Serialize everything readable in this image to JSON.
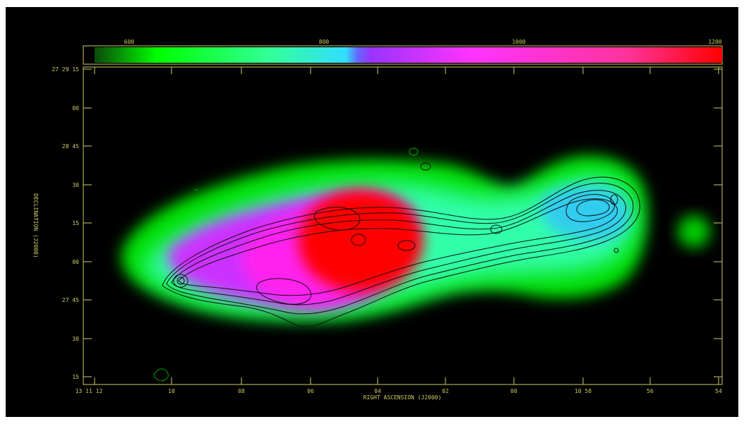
{
  "colorbar": {
    "ticks": [
      "600",
      "800",
      "1000",
      "1200"
    ],
    "stops": [
      {
        "offset": "0%",
        "color": "#0a4a0a"
      },
      {
        "offset": "10%",
        "color": "#00ff00"
      },
      {
        "offset": "28%",
        "color": "#33ff99"
      },
      {
        "offset": "40%",
        "color": "#33ddff"
      },
      {
        "offset": "42%",
        "color": "#6666ff"
      },
      {
        "offset": "44%",
        "color": "#9933ff"
      },
      {
        "offset": "60%",
        "color": "#ff33ff"
      },
      {
        "offset": "85%",
        "color": "#ff3399"
      },
      {
        "offset": "100%",
        "color": "#ff0000"
      }
    ]
  },
  "axes": {
    "xlabel": "RIGHT ASCENSION (J2000)",
    "ylabel": "DECLINATION (J2000)",
    "xticks": [
      "13 11 12",
      "10",
      "08",
      "06",
      "04",
      "02",
      "00",
      "10 58",
      "56",
      "54"
    ],
    "yticks": [
      "27 29 15",
      "00",
      "28 45",
      "30",
      "15",
      "00",
      "27 45",
      "30",
      "15"
    ]
  },
  "colors": {
    "background": "#000000",
    "axis": "#cccc66",
    "contour": "#111111"
  }
}
